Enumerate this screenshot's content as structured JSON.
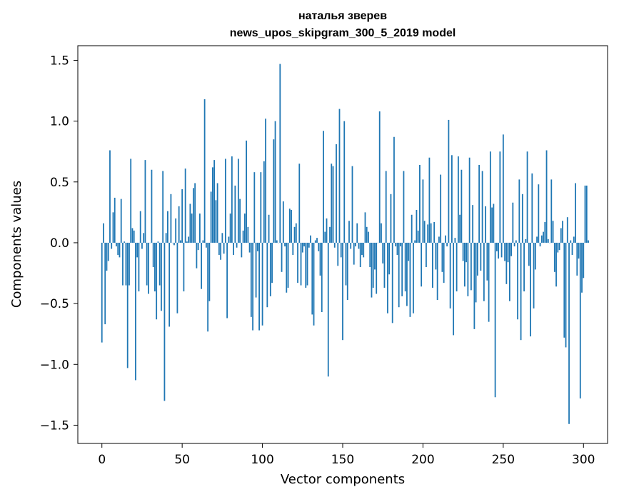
{
  "chart_data": {
    "type": "bar",
    "title_line1": "наталья зверев",
    "title_line2": "news_upos_skipgram_300_5_2019 model",
    "xlabel": "Vector components",
    "ylabel": "Components values",
    "xlim": [
      -15,
      315
    ],
    "ylim": [
      -1.65,
      1.62
    ],
    "x_ticks": [
      0,
      50,
      100,
      150,
      200,
      250,
      300
    ],
    "x_tick_labels": [
      "0",
      "50",
      "100",
      "150",
      "200",
      "250",
      "300"
    ],
    "y_ticks": [
      -1.5,
      -1.0,
      -0.5,
      0.0,
      0.5,
      1.0,
      1.5
    ],
    "y_tick_labels": [
      "−1.5",
      "−1.0",
      "−0.5",
      "0.0",
      "0.5",
      "1.0",
      "1.5"
    ],
    "bar_color": "#1f77b4",
    "grid": false,
    "values": [
      -0.82,
      0.16,
      -0.67,
      -0.23,
      -0.15,
      0.76,
      -0.05,
      0.25,
      0.37,
      -0.03,
      -0.1,
      -0.12,
      0.36,
      -0.35,
      0.01,
      -0.35,
      -1.03,
      -0.35,
      0.69,
      0.12,
      0.1,
      -1.13,
      -0.12,
      -0.4,
      0.26,
      -0.05,
      0.08,
      0.68,
      -0.35,
      -0.42,
      0.0,
      0.6,
      -0.2,
      -0.4,
      -0.63,
      0.01,
      -0.35,
      -0.56,
      0.59,
      -1.3,
      0.08,
      0.26,
      -0.69,
      0.4,
      0.0,
      -0.02,
      0.2,
      -0.58,
      0.3,
      0.02,
      0.44,
      -0.4,
      0.61,
      0.01,
      0.05,
      0.32,
      0.24,
      0.45,
      0.49,
      -0.21,
      -0.06,
      0.24,
      -0.38,
      0.02,
      1.18,
      -0.04,
      -0.73,
      -0.48,
      0.42,
      0.62,
      0.68,
      0.35,
      0.49,
      -0.1,
      -0.14,
      0.08,
      -0.09,
      0.69,
      -0.62,
      0.05,
      0.24,
      0.71,
      -0.1,
      0.47,
      -0.04,
      0.69,
      0.36,
      -0.12,
      0.1,
      0.24,
      0.84,
      0.13,
      -0.08,
      -0.61,
      -0.72,
      0.58,
      -0.45,
      -0.07,
      -0.72,
      0.58,
      -0.68,
      0.67,
      1.02,
      -0.53,
      0.23,
      -0.44,
      -0.33,
      0.85,
      1.0,
      0.02,
      0.0,
      1.47,
      -0.24,
      0.34,
      -0.03,
      -0.41,
      -0.37,
      0.28,
      0.27,
      -0.1,
      0.13,
      0.16,
      -0.33,
      0.65,
      -0.35,
      -0.08,
      -0.03,
      -0.37,
      -0.35,
      -0.04,
      0.06,
      -0.59,
      -0.68,
      0.02,
      0.04,
      -0.07,
      -0.27,
      -0.57,
      0.92,
      0.09,
      0.2,
      -1.1,
      0.13,
      0.65,
      0.63,
      -0.04,
      0.81,
      -0.19,
      1.1,
      -0.12,
      -0.8,
      1.0,
      -0.35,
      -0.47,
      0.18,
      -0.05,
      0.63,
      -0.18,
      -0.03,
      0.16,
      -0.05,
      -0.2,
      -0.1,
      -0.12,
      0.25,
      0.13,
      0.09,
      -0.2,
      -0.45,
      -0.37,
      -0.22,
      -0.42,
      0.0,
      1.08,
      0.16,
      -0.17,
      -0.37,
      0.59,
      -0.58,
      -0.26,
      0.4,
      -0.66,
      0.87,
      -0.03,
      -0.1,
      -0.53,
      -0.03,
      -0.44,
      0.59,
      -0.4,
      -0.52,
      -0.15,
      -0.61,
      0.23,
      -0.58,
      0.02,
      0.27,
      0.1,
      0.64,
      -0.36,
      0.52,
      0.18,
      -0.2,
      0.15,
      0.7,
      0.16,
      -0.37,
      0.17,
      -0.22,
      -0.47,
      0.05,
      0.56,
      -0.24,
      -0.33,
      0.06,
      -0.03,
      1.01,
      -0.54,
      0.72,
      -0.76,
      0.04,
      -0.4,
      0.71,
      0.23,
      0.6,
      -0.15,
      -0.36,
      -0.16,
      -0.44,
      0.7,
      -0.39,
      0.31,
      -0.71,
      -0.49,
      -0.27,
      0.64,
      -0.23,
      0.59,
      -0.48,
      0.3,
      -0.31,
      -0.65,
      0.75,
      0.29,
      0.32,
      -1.27,
      -0.07,
      -0.13,
      0.75,
      -0.12,
      0.89,
      -0.15,
      -0.34,
      -0.16,
      -0.48,
      -0.11,
      0.33,
      -0.03,
      0.02,
      -0.63,
      0.52,
      -0.8,
      0.4,
      -0.4,
      0.03,
      0.75,
      -0.19,
      -0.77,
      0.57,
      -0.54,
      -0.22,
      0.05,
      0.48,
      -0.03,
      0.06,
      0.09,
      0.17,
      0.76,
      0.03,
      0.0,
      0.52,
      0.18,
      -0.24,
      -0.36,
      -0.08,
      -0.06,
      0.12,
      0.18,
      -0.78,
      -0.86,
      0.21,
      -1.49,
      0.02,
      -0.1,
      0.05,
      0.49,
      -0.27,
      -0.13,
      -1.28,
      -0.41,
      -0.29,
      0.47,
      0.47,
      0.02
    ]
  }
}
